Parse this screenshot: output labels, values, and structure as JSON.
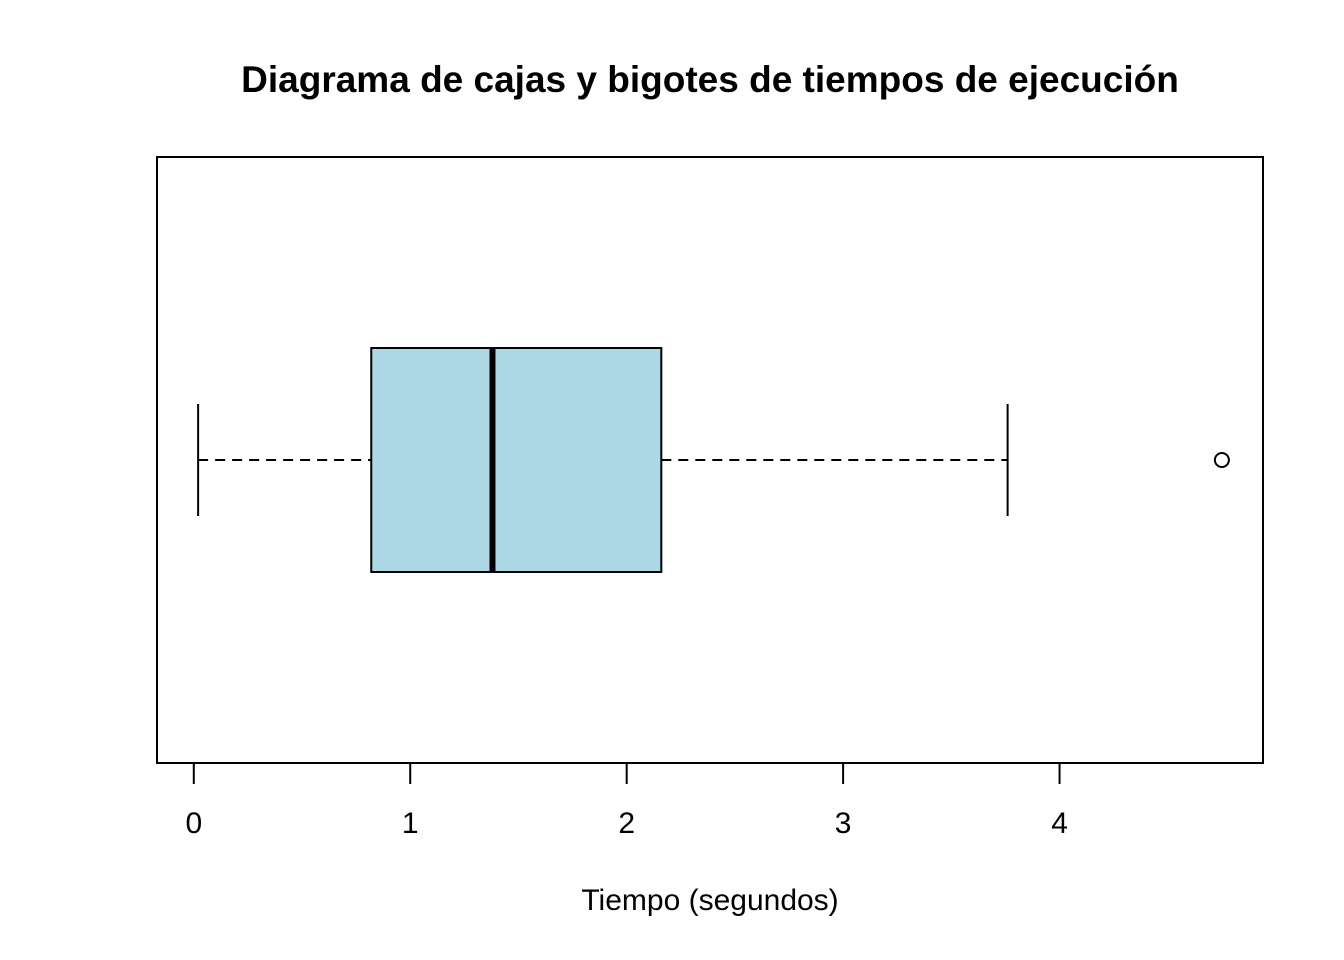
{
  "chart_data": {
    "type": "boxplot",
    "orientation": "horizontal",
    "title": "Diagrama de cajas y bigotes de tiempos de ejecución",
    "xlabel": "Tiempo (segundos)",
    "ylabel": "",
    "xlim": [
      -0.17,
      4.94
    ],
    "xticks": [
      0,
      1,
      2,
      3,
      4
    ],
    "xtick_labels": [
      "0",
      "1",
      "2",
      "3",
      "4"
    ],
    "grid": false,
    "box": {
      "whisker_low": 0.02,
      "q1": 0.82,
      "median": 1.38,
      "q3": 2.16,
      "whisker_high": 3.76,
      "outliers": [
        4.75
      ]
    },
    "colors": {
      "box_fill": "#ADD8E6",
      "stroke": "#000000"
    }
  }
}
